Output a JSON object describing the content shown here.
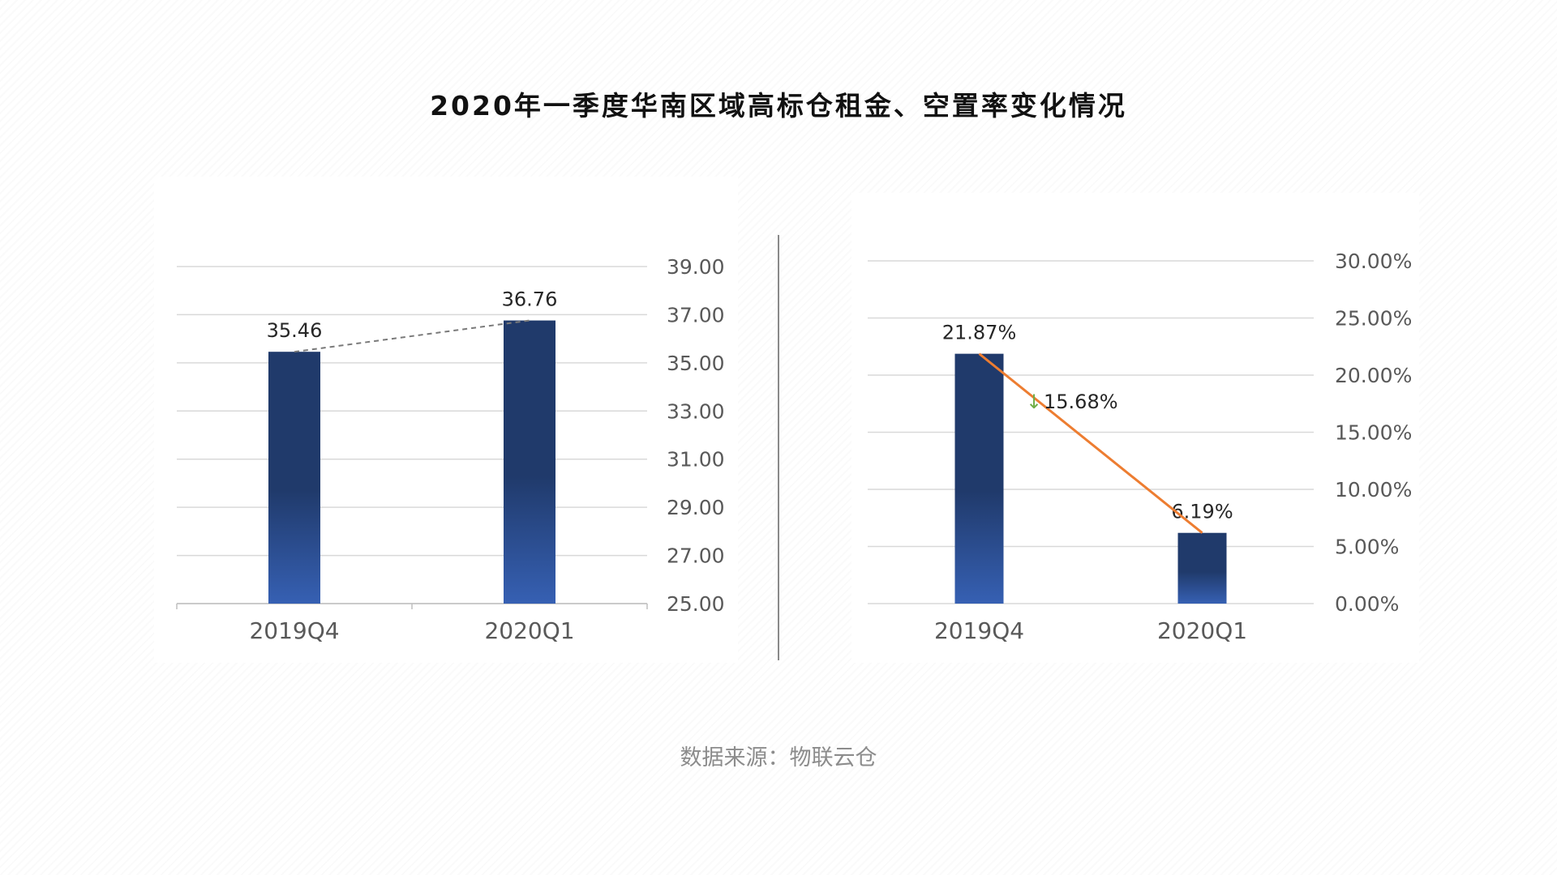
{
  "title": "2020年一季度华南区域高标仓租金、空置率变化情况",
  "source": "数据来源：物联云仓",
  "colors": {
    "bar_top": "#203a6b",
    "bar_bottom": "#3660b3",
    "line_rent": "#7a7a7a",
    "line_vacancy": "#ed7d31",
    "arrow": "#70ad47",
    "grid": "#d9d9d9",
    "tick_text": "#595959"
  },
  "chart_data": [
    {
      "type": "bar",
      "categories": [
        "2019Q4",
        "2020Q1"
      ],
      "values": [
        35.46,
        36.76
      ],
      "value_labels": [
        "35.46",
        "36.76"
      ],
      "ylim": [
        25,
        39
      ],
      "yticks": [
        "25.00",
        "27.00",
        "29.00",
        "31.00",
        "33.00",
        "35.00",
        "37.00",
        "39.00"
      ],
      "y_axis_side": "right",
      "trend_line": "dashed",
      "grid": true
    },
    {
      "type": "bar",
      "categories": [
        "2019Q4",
        "2020Q1"
      ],
      "values": [
        21.87,
        6.19
      ],
      "value_labels": [
        "21.87%",
        "6.19%"
      ],
      "ylim": [
        0,
        30
      ],
      "yticks": [
        "0.00%",
        "5.00%",
        "10.00%",
        "15.00%",
        "20.00%",
        "25.00%",
        "30.00%"
      ],
      "y_axis_side": "right",
      "trend_line": "solid",
      "grid": true,
      "annotation": {
        "arrow": "↓",
        "text": "15.68%"
      }
    }
  ]
}
